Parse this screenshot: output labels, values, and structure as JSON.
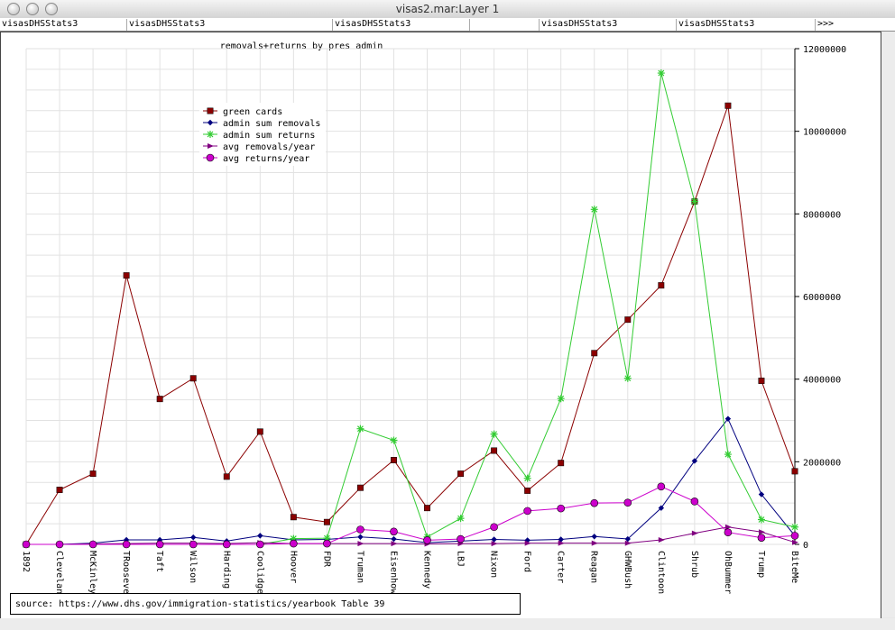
{
  "window": {
    "title": "visas2.mar:Layer 1"
  },
  "tabs": [
    "visasDHSStats3",
    "visasDHSStats3",
    "visasDHSStats3",
    "visasDHSStats3",
    "visasDHSStats3"
  ],
  "tab_more": ">>>",
  "source": "source: https://www.dhs.gov/immigration-statistics/yearbook Table 39",
  "colors": {
    "green_cards": "#8b0000",
    "admin_sum_removals": "#00007f",
    "admin_sum_returns": "#33cc33",
    "avg_removals_year": "#800080",
    "avg_returns_year": "#cc00cc"
  },
  "chart_data": {
    "type": "line",
    "title": "removals+returns by pres admin",
    "categories": [
      "1892",
      "Cleveland",
      "McKinley",
      "TRoosevelt",
      "Taft",
      "Wilson",
      "Harding",
      "Coolidge",
      "Hoover",
      "FDR",
      "Truman",
      "Eisenhower",
      "Kennedy",
      "LBJ",
      "Nixon",
      "Ford",
      "Carter",
      "Reagan",
      "GHWBush",
      "Clintoon",
      "Shrub",
      "OhBummer",
      "Trump",
      "BiteMe"
    ],
    "ylim": [
      0,
      12000000
    ],
    "yticks": [
      "0",
      "2000000",
      "4000000",
      "6000000",
      "8000000",
      "10000000",
      "12000000"
    ],
    "grid": true,
    "legend_position": "top-left",
    "series": [
      {
        "name": "green cards",
        "marker": "square",
        "values": [
          0,
          1320000,
          1710000,
          6510000,
          3520000,
          4020000,
          1640000,
          2730000,
          660000,
          540000,
          1370000,
          2040000,
          880000,
          1710000,
          2270000,
          1300000,
          1970000,
          4630000,
          5440000,
          6270000,
          8300000,
          10620000,
          3960000,
          1770000
        ]
      },
      {
        "name": "admin sum removals",
        "marker": "diamond",
        "values": [
          0,
          0,
          30000,
          110000,
          110000,
          170000,
          80000,
          210000,
          110000,
          120000,
          180000,
          130000,
          40000,
          80000,
          120000,
          100000,
          120000,
          190000,
          130000,
          880000,
          2020000,
          3040000,
          1210000,
          210000
        ]
      },
      {
        "name": "admin sum returns",
        "marker": "asterisk",
        "values": [
          0,
          0,
          0,
          0,
          0,
          0,
          0,
          0,
          140000,
          150000,
          2800000,
          2520000,
          180000,
          630000,
          2670000,
          1600000,
          3530000,
          8110000,
          4020000,
          11410000,
          8300000,
          2180000,
          600000,
          420000
        ]
      },
      {
        "name": "avg removals/year",
        "marker": "triangle",
        "values": [
          0,
          0,
          10000,
          20000,
          30000,
          30000,
          20000,
          40000,
          20000,
          20000,
          20000,
          20000,
          10000,
          20000,
          20000,
          30000,
          30000,
          30000,
          30000,
          110000,
          270000,
          420000,
          300000,
          50000
        ]
      },
      {
        "name": "avg returns/year",
        "marker": "circle",
        "values": [
          0,
          0,
          0,
          0,
          0,
          0,
          0,
          0,
          20000,
          20000,
          360000,
          310000,
          100000,
          130000,
          420000,
          810000,
          870000,
          1000000,
          1010000,
          1400000,
          1040000,
          290000,
          160000,
          210000
        ]
      }
    ]
  }
}
